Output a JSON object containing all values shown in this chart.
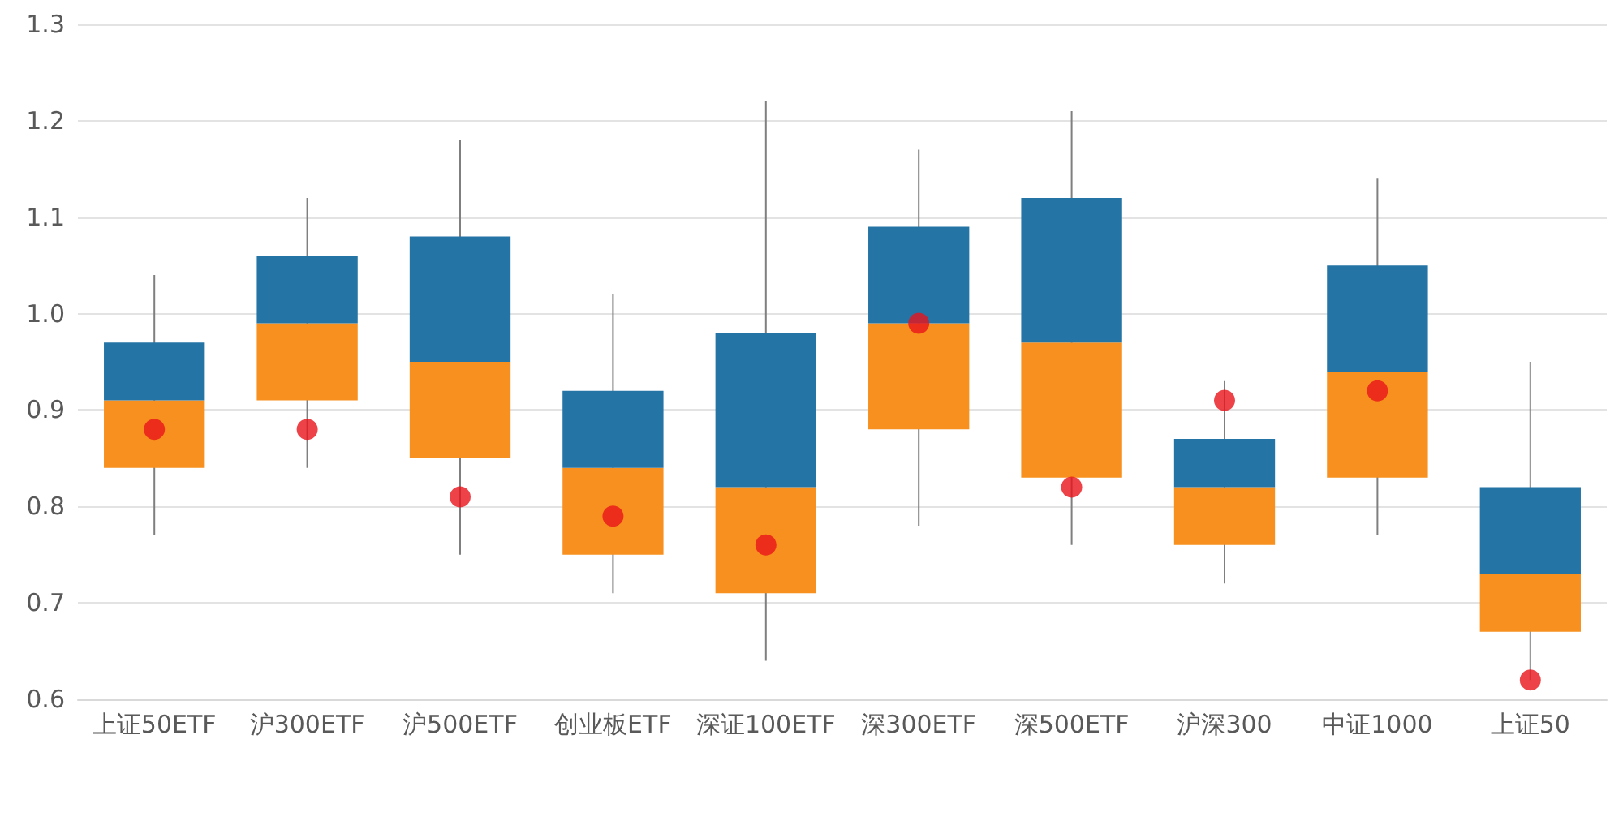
{
  "chart_data": {
    "type": "box",
    "categories": [
      "上证50ETF",
      "沪300ETF",
      "沪500ETF",
      "创业板ETF",
      "深证100ETF",
      "深300ETF",
      "深500ETF",
      "沪深300",
      "中证1000",
      "上证50"
    ],
    "series": [
      {
        "type": "box",
        "color": "#2474a6",
        "colors": [
          "#f7901e",
          "#f7901e",
          "#f7901e",
          "#f7901e",
          "#f7901e",
          "#f7901e",
          "#f7901e",
          "#f7901e",
          "#f7901e",
          "#f7901e"
        ],
        "boxes": [
          {
            "low": 0.77,
            "q1": 0.84,
            "median": 0.91,
            "q3": 0.97,
            "high": 1.04
          },
          {
            "low": 0.84,
            "q1": 0.91,
            "median": 0.99,
            "q3": 1.06,
            "high": 1.12
          },
          {
            "low": 0.75,
            "q1": 0.85,
            "median": 0.95,
            "q3": 1.08,
            "high": 1.18
          },
          {
            "low": 0.71,
            "q1": 0.75,
            "median": 0.84,
            "q3": 0.92,
            "high": 1.02
          },
          {
            "low": 0.64,
            "q1": 0.71,
            "median": 0.82,
            "q3": 0.98,
            "high": 1.22
          },
          {
            "low": 0.78,
            "q1": 0.88,
            "median": 0.99,
            "q3": 1.09,
            "high": 1.17
          },
          {
            "low": 0.76,
            "q1": 0.83,
            "median": 0.97,
            "q3": 1.12,
            "high": 1.21
          },
          {
            "low": 0.72,
            "q1": 0.76,
            "median": 0.82,
            "q3": 0.87,
            "high": 0.93
          },
          {
            "low": 0.77,
            "q1": 0.83,
            "median": 0.94,
            "q3": 1.05,
            "high": 1.14
          },
          {
            "low": 0.62,
            "q1": 0.67,
            "median": 0.73,
            "q3": 0.82,
            "high": 0.95
          }
        ]
      },
      {
        "type": "scatter",
        "color": "#e8141a",
        "x": [
          "上证50ETF",
          "沪300ETF",
          "沪500ETF",
          "创业板ETF",
          "深证100ETF",
          "深300ETF",
          "深500ETF",
          "沪深300",
          "中证1000",
          "上证50"
        ],
        "values": [
          0.88,
          0.88,
          0.81,
          0.79,
          0.76,
          0.99,
          0.82,
          0.91,
          0.92,
          0.62
        ]
      }
    ],
    "ylim": [
      0.6,
      1.3
    ],
    "yticks": [
      0.6,
      0.7,
      0.8,
      0.9,
      {
        "value": 1,
        "label": "1.0"
      },
      1.1,
      1.2,
      1.3
    ],
    "grid": "y",
    "marker": "circle"
  }
}
